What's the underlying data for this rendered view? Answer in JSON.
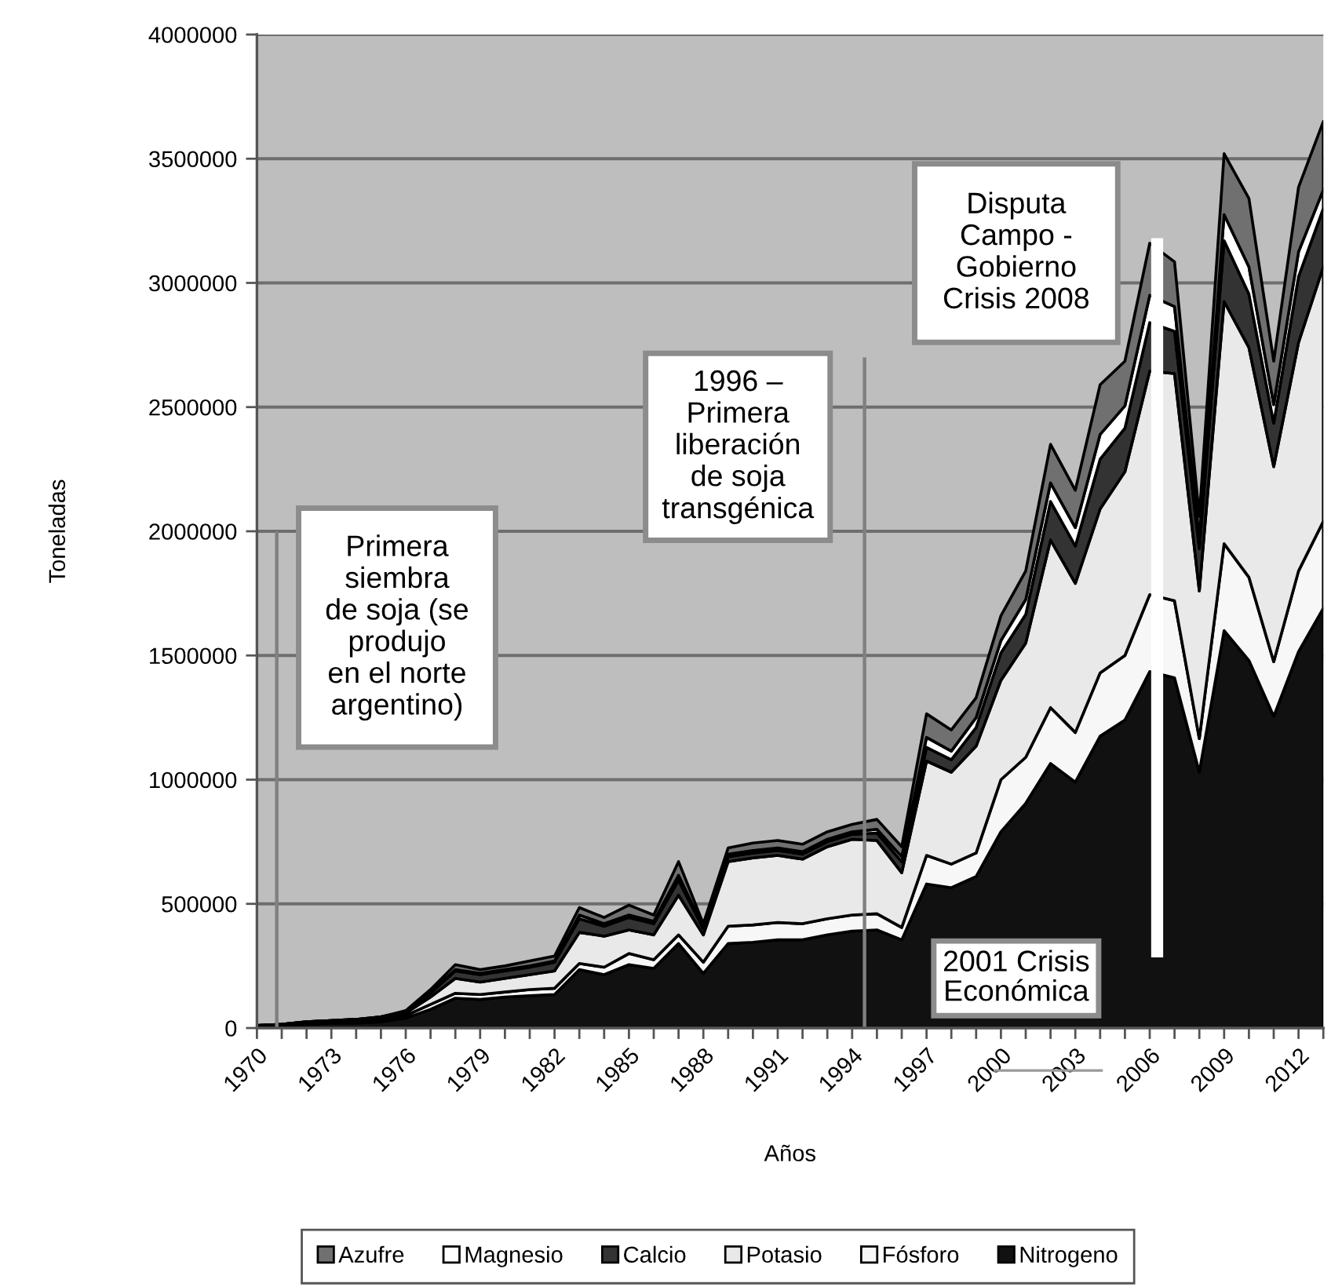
{
  "chart_data": {
    "type": "area",
    "stacked": true,
    "xlabel": "Años",
    "ylabel": "Toneladas",
    "x": [
      1970,
      1971,
      1972,
      1973,
      1974,
      1975,
      1976,
      1977,
      1978,
      1979,
      1980,
      1981,
      1982,
      1983,
      1984,
      1985,
      1986,
      1987,
      1988,
      1989,
      1990,
      1991,
      1992,
      1993,
      1994,
      1995,
      1996,
      1997,
      1998,
      1999,
      2000,
      2001,
      2002,
      2003,
      2004,
      2005,
      2006,
      2007,
      2008,
      2009,
      2010,
      2011,
      2012,
      2013
    ],
    "series": [
      {
        "name": "Nitrogeno",
        "color": "#111111",
        "values": [
          10000,
          10000,
          15000,
          20000,
          20000,
          25000,
          40000,
          75000,
          120000,
          115000,
          125000,
          130000,
          135000,
          235000,
          215000,
          255000,
          240000,
          340000,
          220000,
          340000,
          345000,
          355000,
          355000,
          375000,
          390000,
          395000,
          355000,
          580000,
          565000,
          610000,
          790000,
          905000,
          1065000,
          990000,
          1175000,
          1240000,
          1435000,
          1410000,
          1030000,
          1600000,
          1480000,
          1255000,
          1515000,
          1690000
        ]
      },
      {
        "name": "Fósforo",
        "color": "#f7f7f7",
        "values": [
          0,
          5000,
          5000,
          5000,
          5000,
          10000,
          10000,
          20000,
          20000,
          20000,
          20000,
          25000,
          25000,
          25000,
          30000,
          45000,
          35000,
          35000,
          45000,
          70000,
          70000,
          70000,
          65000,
          65000,
          65000,
          65000,
          50000,
          115000,
          95000,
          95000,
          210000,
          185000,
          225000,
          200000,
          255000,
          260000,
          310000,
          310000,
          135000,
          350000,
          335000,
          220000,
          325000,
          350000
        ]
      },
      {
        "name": "Potasio",
        "color": "#e9e9e9",
        "values": [
          0,
          0,
          5000,
          5000,
          5000,
          5000,
          10000,
          30000,
          60000,
          50000,
          55000,
          60000,
          70000,
          125000,
          125000,
          95000,
          100000,
          160000,
          110000,
          260000,
          270000,
          270000,
          260000,
          290000,
          305000,
          295000,
          220000,
          380000,
          370000,
          430000,
          400000,
          460000,
          675000,
          600000,
          660000,
          740000,
          900000,
          915000,
          595000,
          975000,
          925000,
          785000,
          920000,
          1025000
        ]
      },
      {
        "name": "Calcio",
        "color": "#333333",
        "values": [
          0,
          0,
          0,
          0,
          5000,
          5000,
          5000,
          15000,
          30000,
          30000,
          30000,
          30000,
          35000,
          55000,
          40000,
          50000,
          45000,
          60000,
          25000,
          20000,
          20000,
          20000,
          20000,
          20000,
          20000,
          30000,
          45000,
          55000,
          50000,
          75000,
          110000,
          115000,
          155000,
          150000,
          200000,
          175000,
          195000,
          170000,
          170000,
          245000,
          215000,
          175000,
          265000,
          235000
        ]
      },
      {
        "name": "Magnesio",
        "color": "#ffffff",
        "values": [
          0,
          0,
          0,
          0,
          0,
          0,
          0,
          5000,
          5000,
          5000,
          5000,
          5000,
          5000,
          15000,
          10000,
          10000,
          10000,
          20000,
          5000,
          10000,
          10000,
          10000,
          10000,
          10000,
          10000,
          15000,
          20000,
          40000,
          35000,
          40000,
          50000,
          60000,
          75000,
          75000,
          100000,
          90000,
          110000,
          100000,
          40000,
          105000,
          110000,
          75000,
          100000,
          75000
        ]
      },
      {
        "name": "Azufre",
        "color": "#707070",
        "values": [
          0,
          0,
          0,
          0,
          0,
          0,
          5000,
          10000,
          20000,
          15000,
          15000,
          20000,
          20000,
          30000,
          25000,
          40000,
          25000,
          55000,
          15000,
          25000,
          30000,
          30000,
          30000,
          30000,
          30000,
          40000,
          40000,
          95000,
          85000,
          80000,
          100000,
          115000,
          155000,
          150000,
          200000,
          180000,
          210000,
          180000,
          90000,
          245000,
          275000,
          175000,
          260000,
          275000
        ]
      }
    ],
    "xlim": [
      1970,
      2013
    ],
    "xticks": [
      1970,
      {
        "value": 1971,
        "label": null
      },
      {
        "value": 1972,
        "label": null
      },
      1973,
      {
        "value": 1974,
        "label": null
      },
      {
        "value": 1975,
        "label": null
      },
      1976,
      {
        "value": 1977,
        "label": null
      },
      {
        "value": 1978,
        "label": null
      },
      1979,
      {
        "value": 1980,
        "label": null
      },
      {
        "value": 1981,
        "label": null
      },
      1982,
      {
        "value": 1983,
        "label": null
      },
      {
        "value": 1984,
        "label": null
      },
      1985,
      {
        "value": 1986,
        "label": null
      },
      {
        "value": 1987,
        "label": null
      },
      1988,
      {
        "value": 1989,
        "label": null
      },
      {
        "value": 1990,
        "label": null
      },
      1991,
      {
        "value": 1992,
        "label": null
      },
      {
        "value": 1993,
        "label": null
      },
      1994,
      {
        "value": 1995,
        "label": null
      },
      {
        "value": 1996,
        "label": null
      },
      1997,
      {
        "value": 1998,
        "label": null
      },
      {
        "value": 1999,
        "label": null
      },
      2000,
      {
        "value": 2001,
        "label": null
      },
      {
        "value": 2002,
        "label": null
      },
      2003,
      {
        "value": 2004,
        "label": null
      },
      {
        "value": 2005,
        "label": null
      },
      2006,
      {
        "value": 2007,
        "label": null
      },
      {
        "value": 2008,
        "label": null
      },
      2009,
      {
        "value": 2010,
        "label": null
      },
      {
        "value": 2011,
        "label": null
      },
      2012,
      {
        "value": 2013,
        "label": null
      }
    ],
    "ylim": [
      0,
      4000000
    ],
    "yticks": [
      0,
      500000,
      1000000,
      1500000,
      2000000,
      2500000,
      3000000,
      3500000,
      4000000
    ],
    "grid": "y",
    "legend": "bottom",
    "ref_lines": [
      {
        "axis": "x",
        "value": 1970.8,
        "label": "Primera\nsiembra\nde soja (se\nprodujo\nen el norte\nargentino)",
        "color": "#808080"
      },
      {
        "axis": "x",
        "value": 1994.5,
        "label": "1996 –\nPrimera\nliberación\nde soja\ntransgénica",
        "color": "#808080"
      },
      {
        "axis": "x",
        "value": 2006.3,
        "label": "Disputa\nCampo -\nGobierno\nCrisis 2008",
        "color": "#ffffff"
      }
    ],
    "annotations": [
      "2001 Crisis\nEconómica"
    ]
  }
}
